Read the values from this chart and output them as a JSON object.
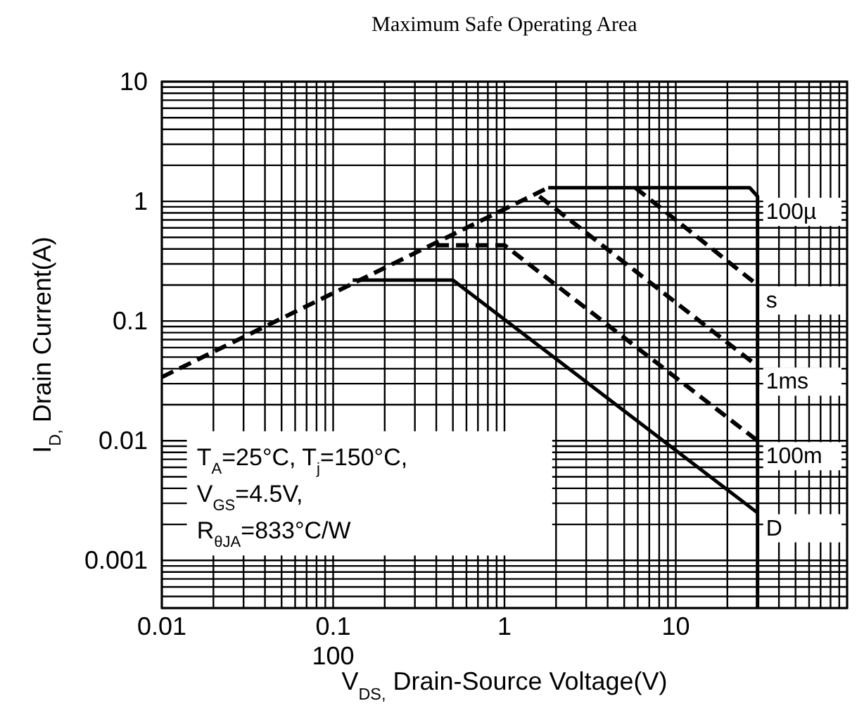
{
  "chart_data": {
    "type": "line",
    "title": "Maximum Safe Operating Area",
    "xlabel": "V$_{DS,}$ Drain-Source Voltage(V)",
    "ylabel": "I$_{D,}$ Drain Current(A)",
    "log": "xy",
    "grid": true,
    "xlim": [
      0.01,
      100
    ],
    "xticks": [
      0.01,
      0.1,
      1,
      10
    ],
    "ylim": [
      0.0004,
      10
    ],
    "yticks": [
      0.001,
      0.01,
      0.1,
      1,
      10
    ],
    "annotations": [
      "T$_{A}$=25°C, T$_{j}$=150°C,",
      "V$_{GS}$=4.5V,",
      "R$_{θJA}$=833°C/W",
      "100"
    ],
    "series": [
      {
        "color": "#000000",
        "line_style": "dashed",
        "x": [
          0.01,
          1.8
        ],
        "values": [
          0.034,
          1.3
        ]
      },
      {
        "name": "100µ",
        "color": "#000000",
        "line_style": "solid",
        "x": [
          1.8,
          27,
          30,
          30
        ],
        "values": [
          1.3,
          1.3,
          1.1,
          0.0004
        ]
      },
      {
        "name": "s",
        "color": "#000000",
        "line_style": "dashed",
        "x": [
          5.8,
          30
        ],
        "values": [
          1.3,
          0.2
        ]
      },
      {
        "name": "1ms",
        "color": "#000000",
        "line_style": "dashed",
        "x": [
          1.6,
          30
        ],
        "values": [
          1.1,
          0.042
        ]
      },
      {
        "name": "100m",
        "color": "#000000",
        "line_style": "dashed",
        "x": [
          0.4,
          1,
          30
        ],
        "values": [
          0.43,
          0.43,
          0.01
        ]
      },
      {
        "name": "D",
        "color": "#000000",
        "line_style": "solid",
        "x": [
          0.13,
          0.5,
          30
        ],
        "values": [
          0.22,
          0.22,
          0.0025
        ]
      }
    ]
  }
}
